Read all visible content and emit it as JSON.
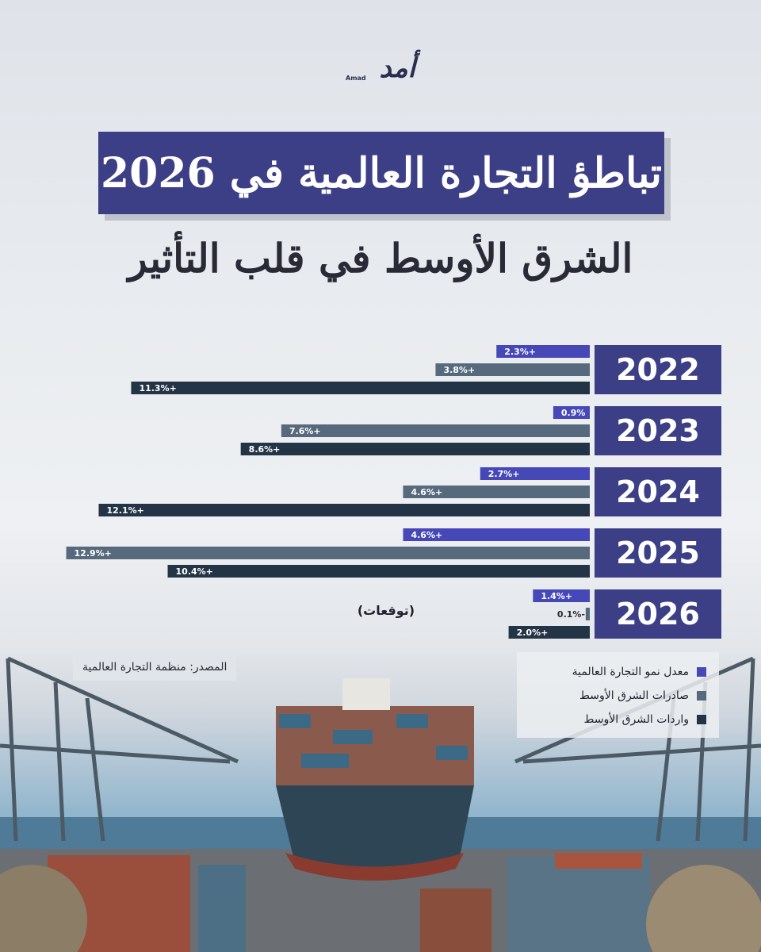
{
  "brand": {
    "logo_text": "أمد",
    "logo_sub": "Amad"
  },
  "title": "تباطؤ التجارة العالمية في 2026",
  "subtitle": "الشرق الأوسط في قلب التأثير",
  "forecast_label": "(توقعات)",
  "source": "المصدر: منظمة التجارة العالمية",
  "legend": [
    {
      "label": "معدل نمو التجارة العالمية",
      "color": "#4648b8"
    },
    {
      "label": "صادرات الشرق الأوسط",
      "color": "#56697d"
    },
    {
      "label": "واردات الشرق الأوسط",
      "color": "#243447"
    }
  ],
  "colors": {
    "title_bg": "#3c3f86",
    "year_bg": "#3c3f86"
  },
  "chart_data": {
    "type": "bar",
    "orientation": "horizontal",
    "categories": [
      "2022",
      "2023",
      "2024",
      "2025",
      "2026"
    ],
    "series": [
      {
        "name": "معدل نمو التجارة العالمية",
        "color": "#4648b8",
        "values": [
          2.3,
          0.9,
          2.7,
          4.6,
          1.4
        ],
        "labels": [
          "2.3%+",
          "0.9%",
          "2.7%+",
          "4.6%+",
          "1.4%+"
        ]
      },
      {
        "name": "صادرات الشرق الأوسط",
        "color": "#56697d",
        "values": [
          3.8,
          7.6,
          4.6,
          12.9,
          -0.1
        ],
        "labels": [
          "3.8%+",
          "7.6%+",
          "4.6%+",
          "12.9%+",
          "0.1%-"
        ]
      },
      {
        "name": "واردات الشرق الأوسط",
        "color": "#243447",
        "values": [
          11.3,
          8.6,
          12.1,
          10.4,
          2.0
        ],
        "labels": [
          "11.3%+",
          "8.6%+",
          "12.1%+",
          "10.4%+",
          "2.0%+"
        ]
      }
    ],
    "xlim": [
      0,
      13.8
    ],
    "grid": false,
    "legend_position": "bottom-right"
  }
}
